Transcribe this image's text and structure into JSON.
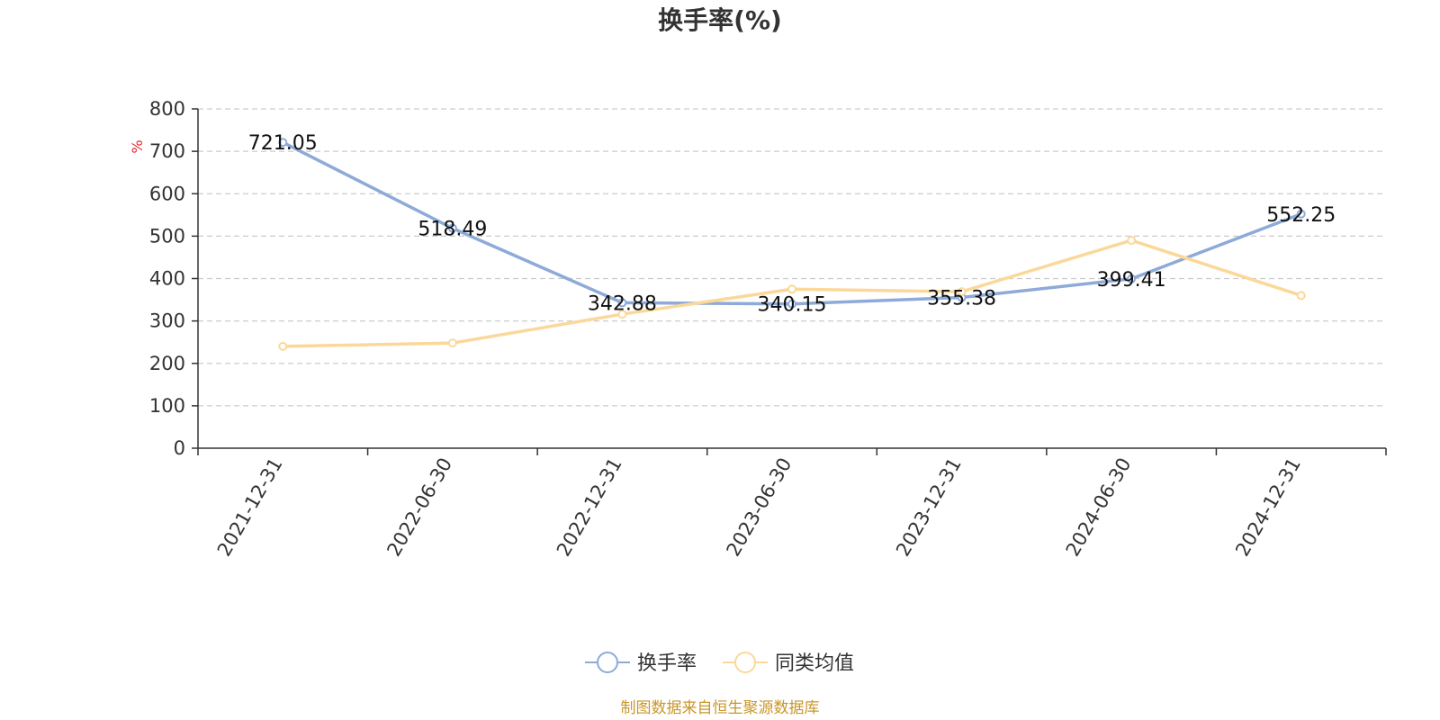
{
  "chart_data": {
    "type": "line",
    "title": "换手率(%)",
    "ylabel": "%",
    "ylim": [
      0,
      800
    ],
    "yticks": [
      "0",
      "100",
      "200",
      "300",
      "400",
      "500",
      "600",
      "700",
      "800"
    ],
    "categories": [
      "2021-12-31",
      "2022-06-30",
      "2022-12-31",
      "2023-06-30",
      "2023-12-31",
      "2024-06-30",
      "2024-12-31"
    ],
    "series": [
      {
        "name": "换手率",
        "color": "#8eaad8",
        "values": [
          721.05,
          518.49,
          342.88,
          340.15,
          355.38,
          399.41,
          552.25
        ],
        "labels": [
          "721.05",
          "518.49",
          "342.88",
          "340.15",
          "355.38",
          "399.41",
          "552.25"
        ]
      },
      {
        "name": "同类均值",
        "color": "#fbd89a",
        "values": [
          240,
          248,
          316,
          375,
          369,
          490,
          360
        ]
      }
    ],
    "grid": true,
    "legend": "bottom-center"
  },
  "source_text": "制图数据来自恒生聚源数据库"
}
